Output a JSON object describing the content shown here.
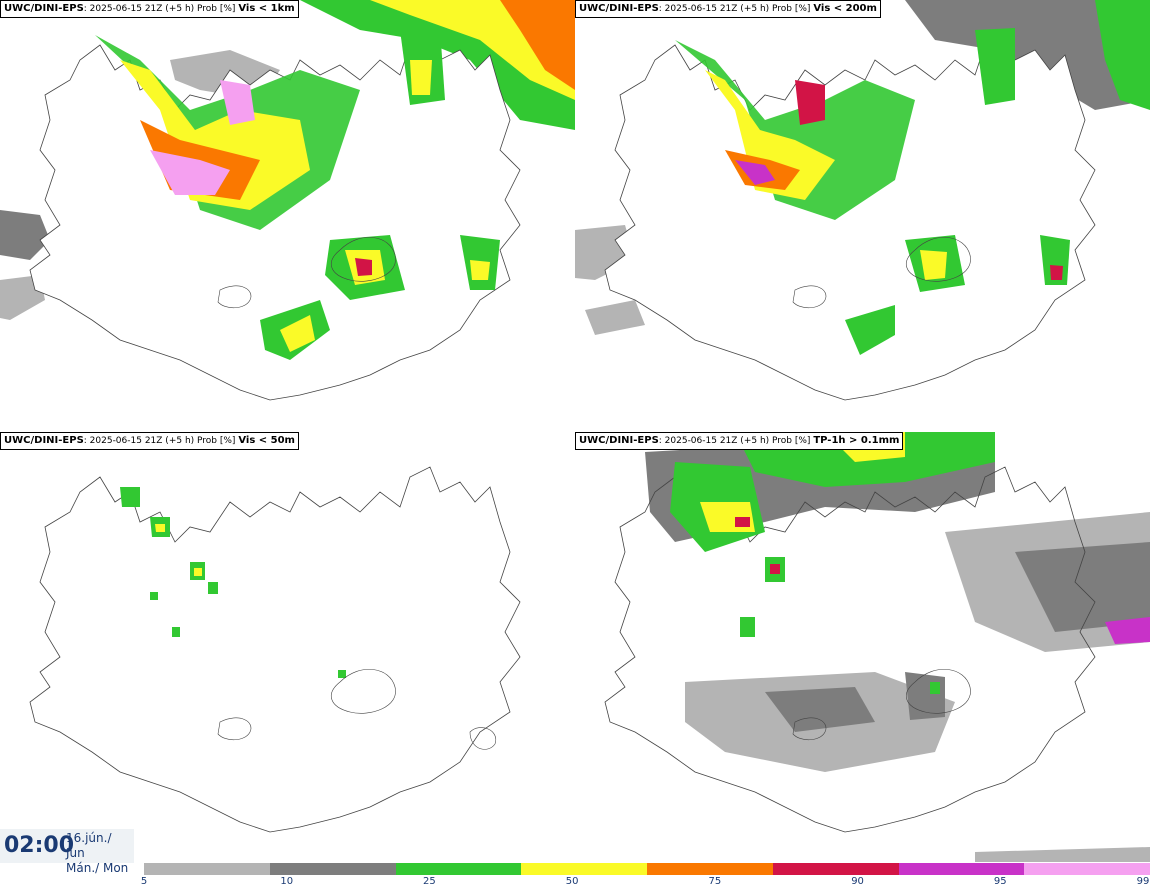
{
  "panels": [
    {
      "model": "UWC/DINI-EPS",
      "run": ": 2025-06-15 21Z (+5 h) Prob [%]",
      "variable": "Vis < 1km"
    },
    {
      "model": "UWC/DINI-EPS",
      "run": ": 2025-06-15 21Z (+5 h) Prob [%]",
      "variable": "Vis < 200m"
    },
    {
      "model": "UWC/DINI-EPS",
      "run": ": 2025-06-15 21Z (+5 h) Prob [%]",
      "variable": "Vis < 50m"
    },
    {
      "model": "UWC/DINI-EPS",
      "run": ": 2025-06-15 21Z (+5 h) Prob [%]",
      "variable": "TP-1h > 0.1mm"
    }
  ],
  "valid_time": {
    "time": "02:00",
    "date_line1": "16.jún./ Jun",
    "date_line2": "Mán./ Mon"
  },
  "legend": {
    "ticks": [
      "5",
      "10",
      "25",
      "50",
      "75",
      "90",
      "95",
      "99"
    ],
    "colors": [
      "#b4b4b4",
      "#7d7d7d",
      "#32c832",
      "#fafa28",
      "#fa7800",
      "#d21446",
      "#c832c8",
      "#f5a0f0"
    ]
  }
}
